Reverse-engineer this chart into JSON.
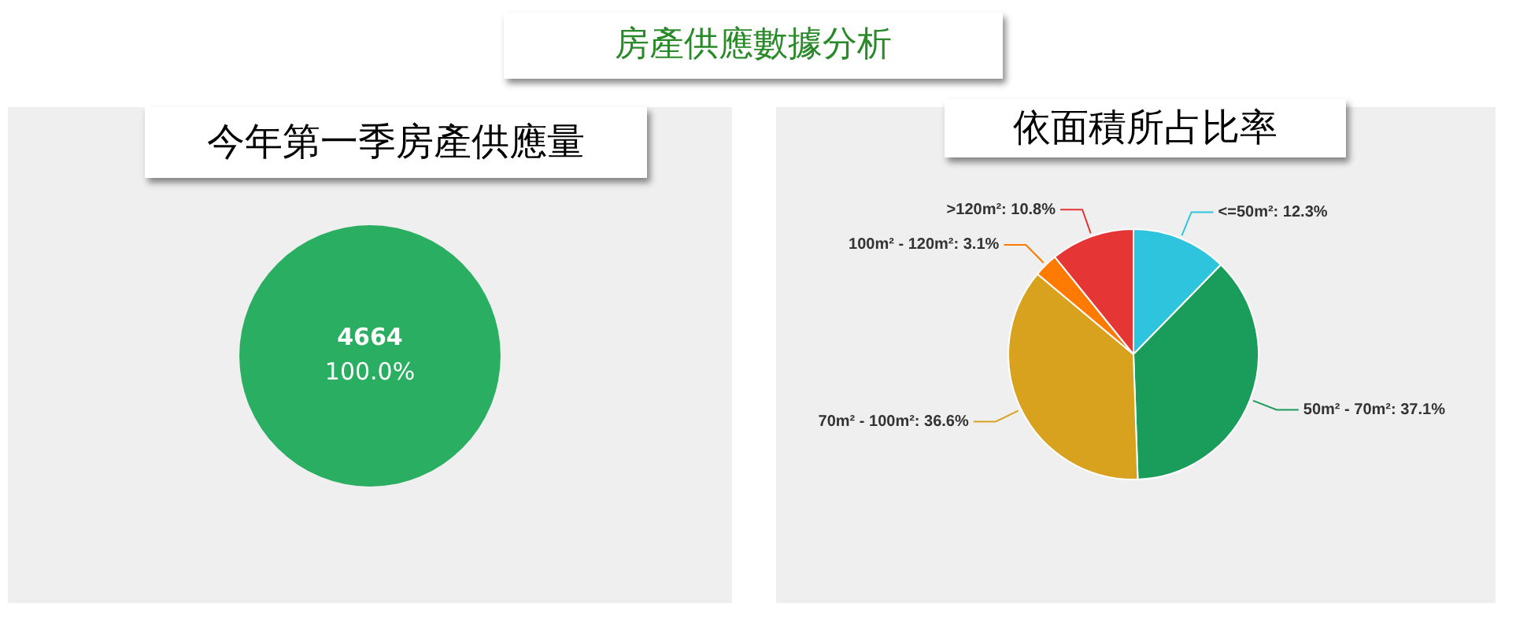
{
  "chart_data": [
    {
      "type": "other",
      "title": "房產供應數據分析"
    },
    {
      "type": "pie",
      "title": "今年第一季房產供應量",
      "categories": [
        null
      ],
      "values": [
        4664
      ],
      "colors": [
        "#2aae62"
      ],
      "data_labels": true,
      "annotations": [
        "100.0%"
      ]
    },
    {
      "type": "pie",
      "title": "依面積所占比率",
      "categories": [
        "<=50m²",
        "50m² - 70m²",
        "70m² - 100m²",
        "100m² - 120m²",
        ">120m²"
      ],
      "values": [
        12.3,
        37.1,
        36.6,
        3.1,
        10.8
      ],
      "colors": [
        "#2ec4de",
        "#1a9c5a",
        "#d9a21e",
        "#ff7a00",
        "#e53535"
      ],
      "value_labels": [
        "12.3%",
        "37.1%",
        "36.6%",
        "3.1%",
        "10.8%"
      ]
    }
  ]
}
